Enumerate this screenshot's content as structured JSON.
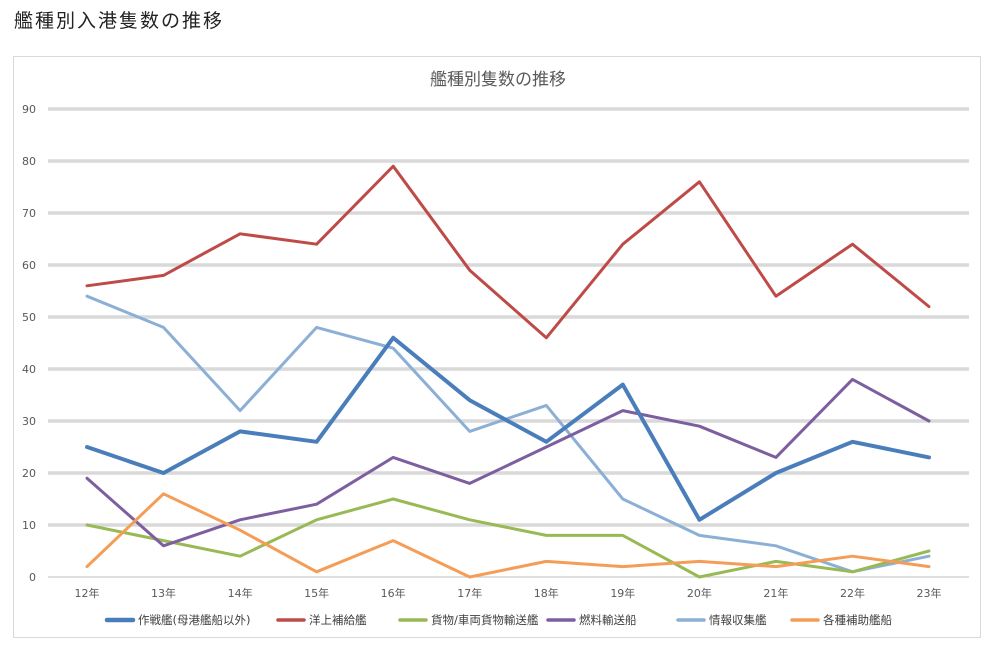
{
  "page": {
    "title": "艦種別入港隻数の推移"
  },
  "chart_data": {
    "type": "line",
    "title": "艦種別隻数の推移",
    "xlabel": "",
    "ylabel": "",
    "ylim": [
      0,
      90
    ],
    "yticks": [
      0,
      10,
      20,
      30,
      40,
      50,
      60,
      70,
      80,
      90
    ],
    "grid": true,
    "legend_position": "bottom",
    "categories": [
      "12年",
      "13年",
      "14年",
      "15年",
      "16年",
      "17年",
      "18年",
      "19年",
      "20年",
      "21年",
      "22年",
      "23年"
    ],
    "series": [
      {
        "name": "作戦艦(母港艦船以外)",
        "color": "#4a7ebb",
        "width": 4,
        "values": [
          25,
          20,
          28,
          26,
          46,
          34,
          26,
          37,
          11,
          20,
          26,
          23
        ]
      },
      {
        "name": "洋上補給艦",
        "color": "#be4b48",
        "width": 3,
        "values": [
          56,
          58,
          66,
          64,
          79,
          59,
          46,
          64,
          76,
          54,
          64,
          52
        ]
      },
      {
        "name": "貨物/車両貨物輸送艦",
        "color": "#98b954",
        "width": 3,
        "values": [
          10,
          7,
          4,
          11,
          15,
          11,
          8,
          8,
          0,
          3,
          1,
          5
        ]
      },
      {
        "name": "燃料輸送船",
        "color": "#7d5fa0",
        "width": 3,
        "values": [
          19,
          6,
          11,
          14,
          23,
          18,
          25,
          32,
          29,
          23,
          38,
          30
        ]
      },
      {
        "name": "情報収集艦",
        "color": "#8cafd6",
        "width": 3,
        "values": [
          54,
          48,
          32,
          48,
          44,
          28,
          33,
          15,
          8,
          6,
          1,
          4
        ]
      },
      {
        "name": "各種補助艦船",
        "color": "#f59d56",
        "width": 3,
        "values": [
          2,
          16,
          9,
          1,
          7,
          0,
          3,
          2,
          3,
          2,
          4,
          2
        ]
      }
    ]
  }
}
